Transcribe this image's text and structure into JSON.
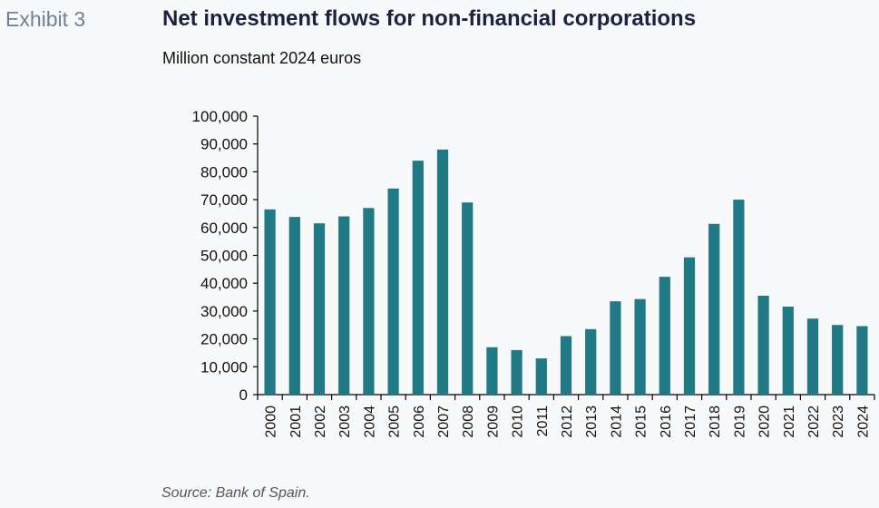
{
  "header": {
    "exhibit_label": "Exhibit 3",
    "title": "Net investment flows for non-financial corporations",
    "subtitle": "Million constant 2024 euros"
  },
  "footer": {
    "source": "Source: Bank of Spain."
  },
  "colors": {
    "bar": "#1f7a85",
    "axis": "#000000"
  },
  "chart_data": {
    "type": "bar",
    "categories": [
      "2000",
      "2001",
      "2002",
      "2003",
      "2004",
      "2005",
      "2006",
      "2007",
      "2008",
      "2009",
      "2010",
      "2011",
      "2012",
      "2013",
      "2014",
      "2015",
      "2016",
      "2017",
      "2018",
      "2019",
      "2020",
      "2021",
      "2022",
      "2023",
      "2024"
    ],
    "values": [
      66500,
      63800,
      61500,
      64000,
      67000,
      74000,
      84000,
      88000,
      69000,
      17000,
      16000,
      13000,
      21000,
      23500,
      33500,
      34300,
      42300,
      49300,
      61300,
      70000,
      35500,
      31600,
      27300,
      25000,
      24600
    ],
    "ylim": [
      0,
      100000
    ],
    "yticks": [
      0,
      10000,
      20000,
      30000,
      40000,
      50000,
      60000,
      70000,
      80000,
      90000,
      100000
    ],
    "ytick_labels": [
      "0",
      "10,000",
      "20,000",
      "30,000",
      "40,000",
      "50,000",
      "60,000",
      "70,000",
      "80,000",
      "90,000",
      "100,000"
    ],
    "grid": false,
    "legend": "none"
  }
}
